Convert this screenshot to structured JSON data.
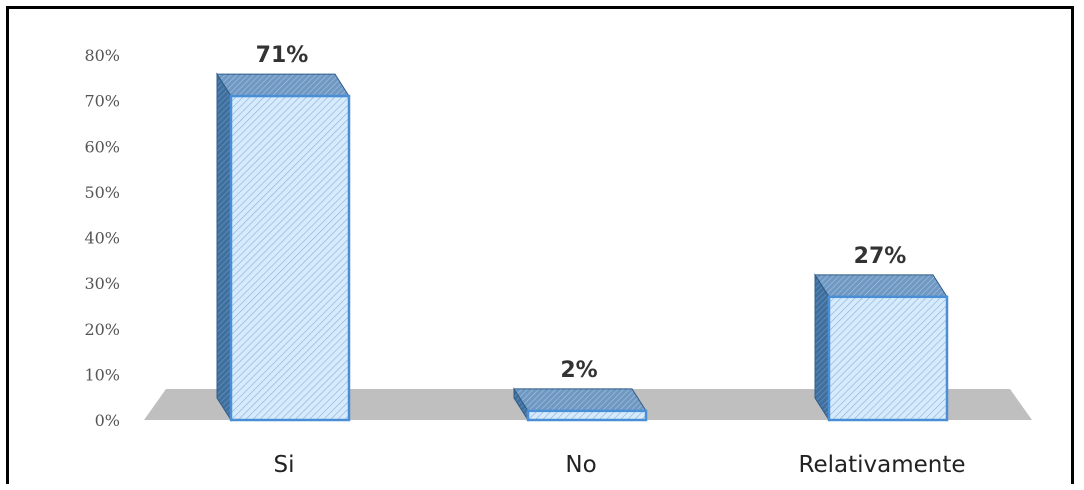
{
  "chart_data": {
    "type": "bar",
    "title": "",
    "xlabel": "",
    "ylabel": "",
    "categories": [
      "Si",
      "No",
      "Relativamente"
    ],
    "values": [
      71,
      2,
      27
    ],
    "data_labels": [
      "71%",
      "2%",
      "27%"
    ],
    "ylim": [
      0,
      80
    ],
    "y_ticks": [
      "0%",
      "10%",
      "20%",
      "30%",
      "40%",
      "50%",
      "60%",
      "70%",
      "80%"
    ],
    "grid": false,
    "legend": "none",
    "style": "3d-hatched",
    "colors": {
      "bar_front": "#cfe6fb",
      "bar_edge": "#4a8fd6",
      "bar_side": "#3b6a99",
      "bar_top": "#7aa3c9",
      "floor": "#bfbfbf"
    }
  }
}
